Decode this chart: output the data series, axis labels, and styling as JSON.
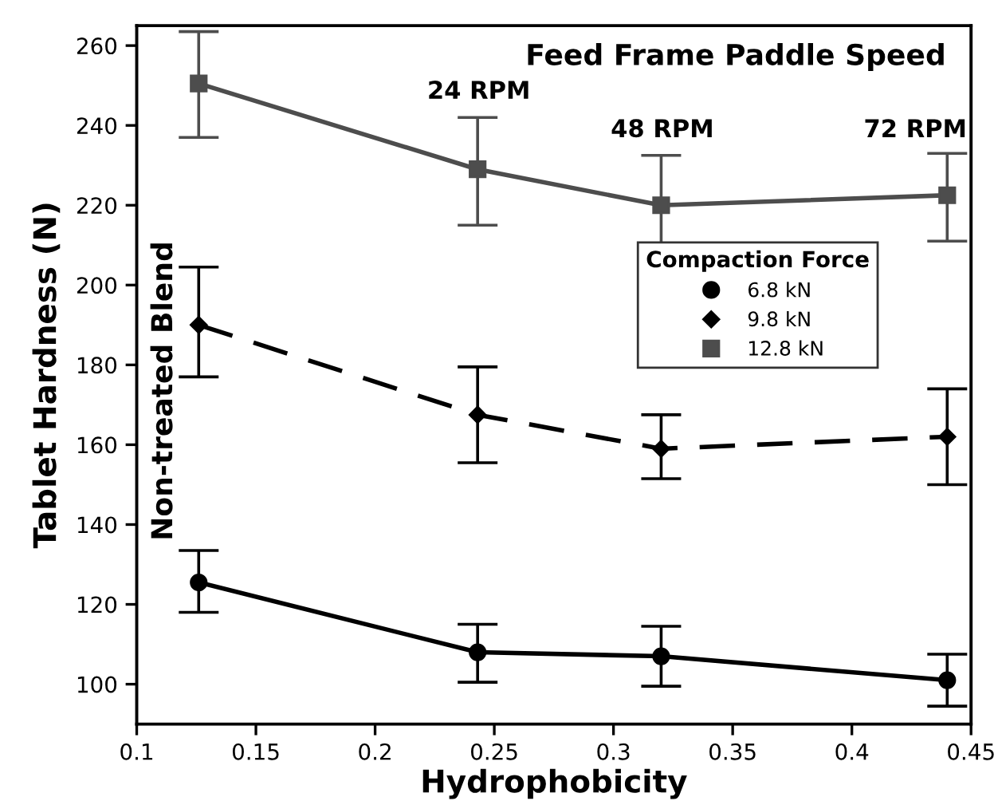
{
  "chart_data": {
    "type": "line",
    "title": "Feed Frame Paddle Speed",
    "xlabel": "Hydrophobicity",
    "ylabel": "Tablet Hardness (N)",
    "legend_title": "Compaction Force",
    "legend": "right",
    "grid": false,
    "xlim": [
      0.1,
      0.45
    ],
    "xticks": [
      0.1,
      0.15,
      0.2,
      0.25,
      0.3,
      0.35,
      0.4,
      0.45
    ],
    "ylim": [
      90,
      265
    ],
    "yticks": [
      100,
      120,
      140,
      160,
      180,
      200,
      220,
      240,
      260
    ],
    "x": [
      0.126,
      0.243,
      0.32,
      0.44
    ],
    "series": [
      {
        "name": "6.8 kN",
        "color": "#000000",
        "marker": "circle",
        "line_style": "solid",
        "values": [
          125.5,
          108,
          107,
          101
        ],
        "errors": [
          [
            118,
            133.5
          ],
          [
            100.5,
            115
          ],
          [
            99.5,
            114.5
          ],
          [
            94.5,
            107.5
          ]
        ]
      },
      {
        "name": "9.8 kN",
        "color": "#000000",
        "marker": "diamond",
        "line_style": "dashed",
        "values": [
          190,
          167.5,
          159,
          162
        ],
        "errors": [
          [
            177,
            204.5
          ],
          [
            155.5,
            179.5
          ],
          [
            151.5,
            167.5
          ],
          [
            150,
            174
          ]
        ]
      },
      {
        "name": "12.8 kN",
        "color": "#4d4d4d",
        "marker": "square",
        "line_style": "solid",
        "values": [
          250.5,
          229,
          220,
          222.5
        ],
        "errors": [
          [
            237,
            263.5
          ],
          [
            215,
            242
          ],
          [
            207,
            232.5
          ],
          [
            211,
            233
          ]
        ]
      }
    ],
    "annotations": [
      "Non-treated Blend",
      "24 RPM",
      "48 RPM",
      "72 RPM"
    ]
  }
}
